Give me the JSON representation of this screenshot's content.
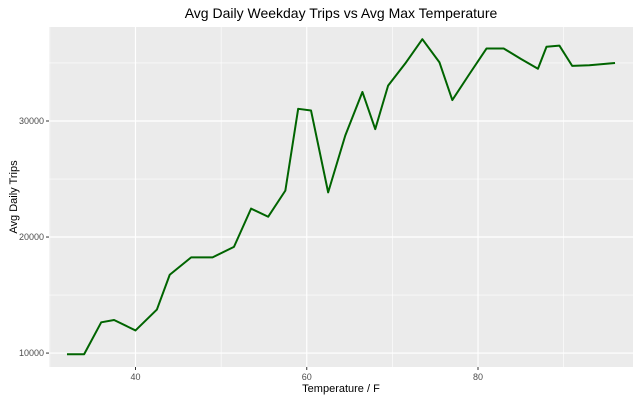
{
  "chart_data": {
    "type": "line",
    "title": "Avg Daily Weekday Trips vs Avg Max Temperature",
    "xlabel": "Temperature / F",
    "ylabel": "Avg Daily Trips",
    "xlim": [
      29.9,
      98.1
    ],
    "ylim": [
      8800,
      38100
    ],
    "x_ticks": [
      40,
      60,
      80
    ],
    "x_tick_labels": [
      "40",
      "60",
      "80"
    ],
    "y_ticks": [
      10000,
      20000,
      30000
    ],
    "y_tick_labels": [
      "10000",
      "20000",
      "30000"
    ],
    "x_minor_ticks": [
      30,
      50,
      70,
      90
    ],
    "y_minor_ticks": [
      15000,
      25000,
      35000
    ],
    "grid": true,
    "background": "#ebebeb",
    "grid_color": "#ffffff",
    "series": [
      {
        "color": "#006400",
        "x": [
          32,
          34,
          36,
          37.5,
          40,
          42.5,
          44,
          46.5,
          49,
          51.5,
          53.5,
          55.5,
          57.5,
          59,
          60.5,
          62.5,
          64.5,
          66.5,
          68,
          69.5,
          71.5,
          73.5,
          75.5,
          77,
          79,
          81,
          83,
          85,
          87,
          88,
          89.5,
          91,
          93,
          96
        ],
        "y": [
          9900,
          9900,
          12650,
          12850,
          11950,
          13750,
          16750,
          18250,
          18250,
          19150,
          22450,
          21750,
          24000,
          31050,
          30900,
          23850,
          28750,
          32500,
          29300,
          33050,
          34950,
          37050,
          35050,
          31800,
          34050,
          36250,
          36250,
          35350,
          34500,
          36400,
          36500,
          34750,
          34800,
          35000
        ]
      }
    ]
  }
}
